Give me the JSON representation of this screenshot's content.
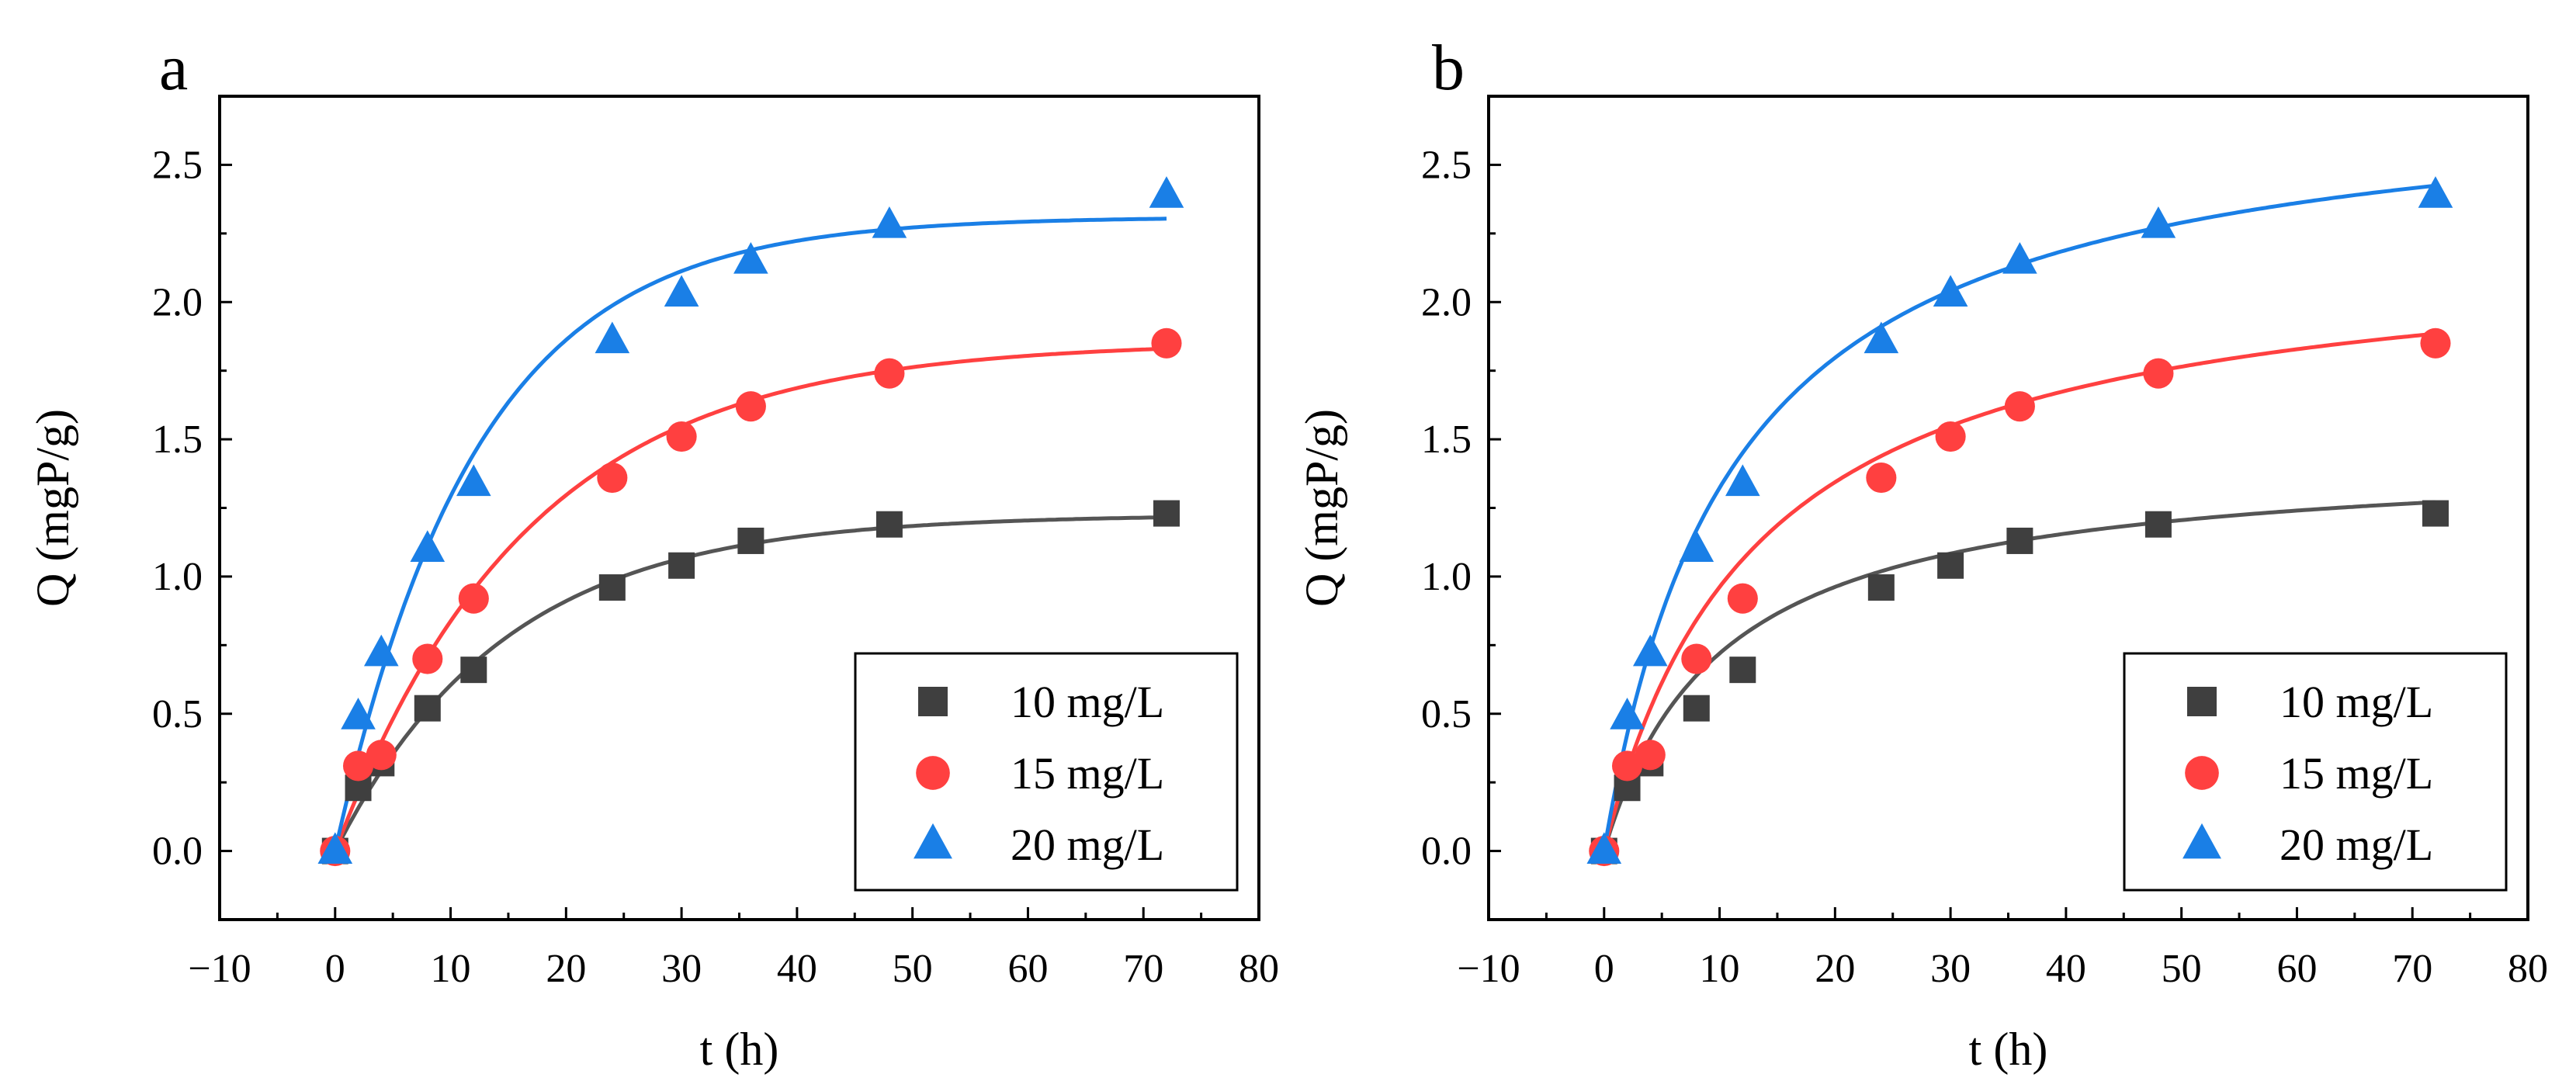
{
  "chart_data": [
    {
      "panel_label": "a",
      "type": "scatter",
      "xlabel": "t (h)",
      "ylabel": "Q (mgP/g)",
      "xlim": [
        -10,
        80
      ],
      "ylim": [
        -0.25,
        2.75
      ],
      "xticks": [
        -10,
        0,
        10,
        20,
        30,
        40,
        50,
        60,
        70,
        80
      ],
      "xtick_labels": [
        "−10",
        "0",
        "10",
        "20",
        "30",
        "40",
        "50",
        "60",
        "70",
        "80"
      ],
      "yticks": [
        0.0,
        0.5,
        1.0,
        1.5,
        2.0,
        2.5
      ],
      "ytick_labels": [
        "0.0",
        "0.5",
        "1.0",
        "1.5",
        "2.0",
        "2.5"
      ],
      "legend_position": "bottom-right",
      "x": [
        0,
        2,
        4,
        8,
        12,
        24,
        30,
        36,
        48,
        72
      ],
      "series": [
        {
          "name": "10 mg/L",
          "marker": "square",
          "color": "#3f3f3f",
          "line_color": "#555555",
          "values": [
            0.0,
            0.23,
            0.32,
            0.52,
            0.66,
            0.96,
            1.04,
            1.13,
            1.19,
            1.23
          ],
          "fit": {
            "model": "pfo",
            "qe": 1.225,
            "k": 0.068
          }
        },
        {
          "name": "15 mg/L",
          "marker": "circle",
          "color": "#ff4040",
          "line_color": "#ff4040",
          "values": [
            0.0,
            0.31,
            0.35,
            0.7,
            0.92,
            1.36,
            1.51,
            1.62,
            1.74,
            1.85
          ],
          "fit": {
            "model": "pfo",
            "qe": 1.855,
            "k": 0.06
          }
        },
        {
          "name": "20 mg/L",
          "marker": "triangle",
          "color": "#1a7fe6",
          "line_color": "#1a7fe6",
          "values": [
            0.0,
            0.49,
            0.72,
            1.1,
            1.34,
            1.86,
            2.03,
            2.15,
            2.28,
            2.39
          ],
          "fit": {
            "model": "pfo",
            "qe": 2.31,
            "k": 0.082
          }
        }
      ]
    },
    {
      "panel_label": "b",
      "type": "scatter",
      "xlabel": "t (h)",
      "ylabel": "Q (mgP/g)",
      "xlim": [
        -10,
        80
      ],
      "ylim": [
        -0.25,
        2.75
      ],
      "xticks": [
        -10,
        0,
        10,
        20,
        30,
        40,
        50,
        60,
        70,
        80
      ],
      "xtick_labels": [
        "−10",
        "0",
        "10",
        "20",
        "30",
        "40",
        "50",
        "60",
        "70",
        "80"
      ],
      "yticks": [
        0.0,
        0.5,
        1.0,
        1.5,
        2.0,
        2.5
      ],
      "ytick_labels": [
        "0.0",
        "0.5",
        "1.0",
        "1.5",
        "2.0",
        "2.5"
      ],
      "legend_position": "bottom-right",
      "x": [
        0,
        2,
        4,
        8,
        12,
        24,
        30,
        36,
        48,
        72
      ],
      "series": [
        {
          "name": "10 mg/L",
          "marker": "square",
          "color": "#3f3f3f",
          "line_color": "#555555",
          "values": [
            0.0,
            0.23,
            0.32,
            0.52,
            0.66,
            0.96,
            1.04,
            1.13,
            1.19,
            1.23
          ],
          "fit": {
            "model": "pso",
            "qe": 1.45,
            "k": 0.068
          }
        },
        {
          "name": "15 mg/L",
          "marker": "circle",
          "color": "#ff4040",
          "line_color": "#ff4040",
          "values": [
            0.0,
            0.31,
            0.35,
            0.7,
            0.92,
            1.36,
            1.51,
            1.62,
            1.74,
            1.85
          ],
          "fit": {
            "model": "pso",
            "qe": 2.23,
            "k": 0.034
          }
        },
        {
          "name": "20 mg/L",
          "marker": "triangle",
          "color": "#1a7fe6",
          "line_color": "#1a7fe6",
          "values": [
            0.0,
            0.49,
            0.72,
            1.1,
            1.34,
            1.86,
            2.03,
            2.15,
            2.28,
            2.39
          ],
          "fit": {
            "model": "pso",
            "qe": 2.8,
            "k": 0.032
          }
        }
      ]
    }
  ]
}
